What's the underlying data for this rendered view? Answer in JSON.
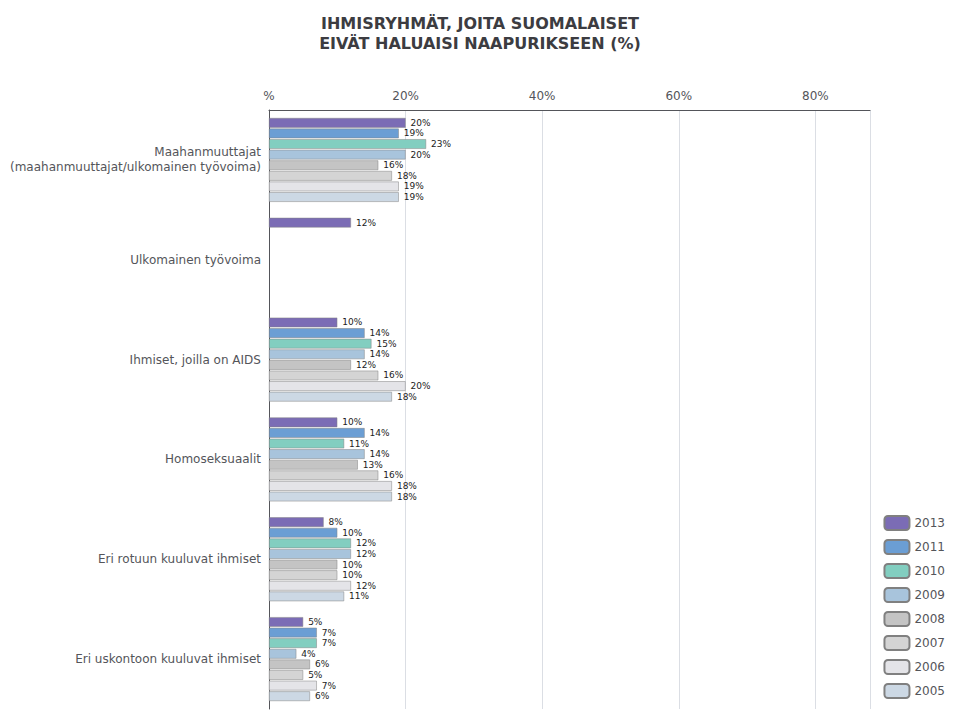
{
  "chart_data": {
    "type": "bar",
    "orientation": "horizontal",
    "title": "IHMISRYHMÄT, JOITA SUOMALAISET\nEIVÄT HALUAISI NAAPURIKSEEN (%)",
    "categories": [
      "Maahanmuuttajat\n(maahanmuuttajat/ulkomainen työvoima)",
      "Ulkomainen työvoima",
      "Ihmiset, joilla on AIDS",
      "Homoseksuaalit",
      "Eri rotuun kuuluvat ihmiset",
      "Eri uskontoon kuuluvat ihmiset"
    ],
    "series": [
      {
        "name": "2013",
        "color": "#7B6CB5",
        "values": [
          20,
          12,
          10,
          10,
          8,
          5
        ],
        "value_labels": [
          "20%",
          "12%",
          "10%",
          "10%",
          "8%",
          "5%"
        ]
      },
      {
        "name": "2011",
        "color": "#6B9ED4",
        "values": [
          19,
          null,
          14,
          14,
          10,
          7
        ],
        "value_labels": [
          "19%",
          null,
          "14%",
          "14%",
          "10%",
          "7%"
        ]
      },
      {
        "name": "2010",
        "color": "#82CEC0",
        "values": [
          23,
          null,
          15,
          11,
          12,
          7
        ],
        "value_labels": [
          "23%",
          null,
          "15%",
          "11%",
          "12%",
          "7%"
        ]
      },
      {
        "name": "2009",
        "color": "#A8C4DC",
        "values": [
          20,
          null,
          14,
          14,
          12,
          4
        ],
        "value_labels": [
          "20%",
          null,
          "14%",
          "14%",
          "12%",
          "4%"
        ]
      },
      {
        "name": "2008",
        "color": "#C4C4C4",
        "values": [
          16,
          null,
          12,
          13,
          10,
          6
        ],
        "value_labels": [
          "16%",
          null,
          "12%",
          "13%",
          "10%",
          "6%"
        ]
      },
      {
        "name": "2007",
        "color": "#D4D4D4",
        "values": [
          18,
          null,
          16,
          16,
          10,
          5
        ],
        "value_labels": [
          "18%",
          null,
          "16%",
          "16%",
          "10%",
          "5%"
        ]
      },
      {
        "name": "2006",
        "color": "#E4E4E8",
        "values": [
          19,
          null,
          20,
          18,
          12,
          7
        ],
        "value_labels": [
          "19%",
          null,
          "20%",
          "18%",
          "12%",
          "7%"
        ]
      },
      {
        "name": "2005",
        "color": "#CCD8E4",
        "values": [
          19,
          null,
          18,
          18,
          11,
          6
        ],
        "value_labels": [
          "19%",
          null,
          "18%",
          "18%",
          "11%",
          "6%"
        ]
      }
    ],
    "xlim": [
      0,
      88
    ],
    "xticks": [
      {
        "value": 0,
        "label": "%"
      },
      {
        "value": 20,
        "label": "20%"
      },
      {
        "value": 40,
        "label": "40%"
      },
      {
        "value": 60,
        "label": "60%"
      },
      {
        "value": 80,
        "label": "80%"
      }
    ],
    "grid": true,
    "legend": "lower right",
    "data_labels": true
  }
}
